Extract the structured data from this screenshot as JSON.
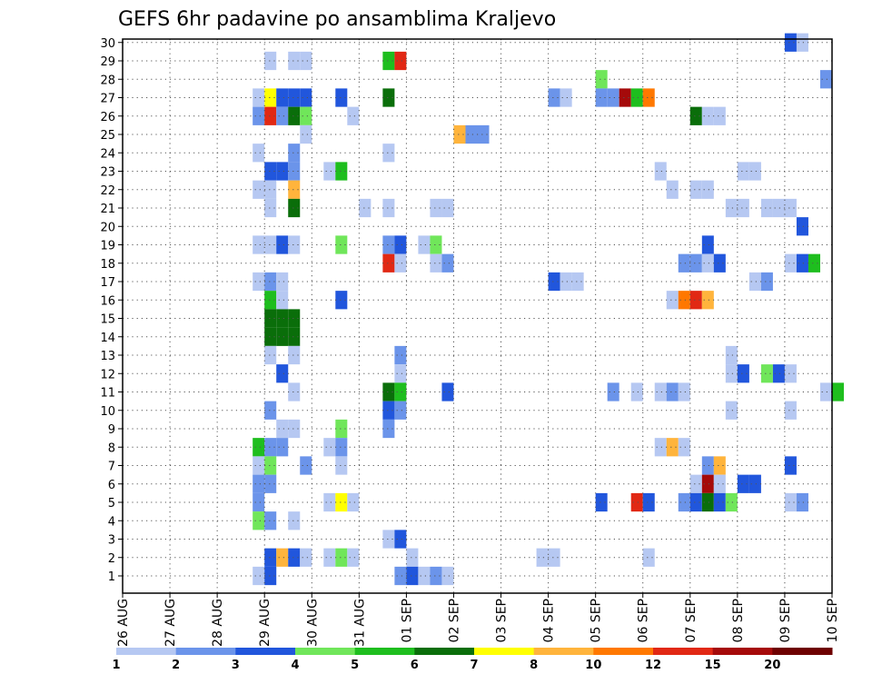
{
  "chart_data": {
    "type": "heatmap",
    "title": "GEFS 6hr padavine po ansamblima Kraljevo",
    "xlabel": "",
    "ylabel": "",
    "x_ticks": [
      "26 AUG",
      "27 AUG",
      "28 AUG",
      "29 AUG",
      "30 AUG",
      "31 AUG",
      "01 SEP",
      "02 SEP",
      "03 SEP",
      "04 SEP",
      "05 SEP",
      "06 SEP",
      "07 SEP",
      "08 SEP",
      "09 SEP",
      "10 SEP"
    ],
    "x_range": [
      "26 AUG 00Z",
      "10 SEP 00Z"
    ],
    "y_ticks": [
      1,
      2,
      3,
      4,
      5,
      6,
      7,
      8,
      9,
      10,
      11,
      12,
      13,
      14,
      15,
      16,
      17,
      18,
      19,
      20,
      21,
      22,
      23,
      24,
      25,
      26,
      27,
      28,
      29,
      30
    ],
    "grid": true,
    "legend": {
      "placement": "bottom",
      "labels": [
        "1",
        "2",
        "3",
        "4",
        "5",
        "6",
        "7",
        "8",
        "10",
        "12",
        "15",
        "20"
      ],
      "colors": [
        "#b6c8f2",
        "#6b94ea",
        "#2156dc",
        "#70e65a",
        "#1ebe1e",
        "#0a6e0a",
        "#ffff00",
        "#ffb43c",
        "#ff7800",
        "#e12814",
        "#a50a0a",
        "#6e0000"
      ]
    },
    "cells_note": "each cell = [step, member, level]; step = 6-hour interval index after 26 AUG 00Z; level 1..12 indexes the legend colors",
    "cells": [
      [
        56,
        30,
        3
      ],
      [
        57,
        30,
        1
      ],
      [
        12,
        29,
        1
      ],
      [
        14,
        29,
        1
      ],
      [
        15,
        29,
        1
      ],
      [
        22,
        29,
        5
      ],
      [
        23,
        29,
        10
      ],
      [
        40,
        28,
        4
      ],
      [
        59,
        28,
        2
      ],
      [
        11,
        27,
        1
      ],
      [
        12,
        27,
        7
      ],
      [
        13,
        27,
        3
      ],
      [
        14,
        27,
        3
      ],
      [
        15,
        27,
        3
      ],
      [
        18,
        27,
        3
      ],
      [
        22,
        27,
        6
      ],
      [
        36,
        27,
        2
      ],
      [
        37,
        27,
        1
      ],
      [
        40,
        27,
        2
      ],
      [
        41,
        27,
        2
      ],
      [
        42,
        27,
        11
      ],
      [
        43,
        27,
        5
      ],
      [
        44,
        27,
        9
      ],
      [
        11,
        26,
        2
      ],
      [
        12,
        26,
        10
      ],
      [
        13,
        26,
        2
      ],
      [
        14,
        26,
        6
      ],
      [
        15,
        26,
        4
      ],
      [
        19,
        26,
        1
      ],
      [
        48,
        26,
        6
      ],
      [
        49,
        26,
        1
      ],
      [
        50,
        26,
        1
      ],
      [
        15,
        25,
        1
      ],
      [
        28,
        25,
        8
      ],
      [
        29,
        25,
        2
      ],
      [
        30,
        25,
        2
      ],
      [
        11,
        24,
        1
      ],
      [
        14,
        24,
        2
      ],
      [
        22,
        24,
        1
      ],
      [
        12,
        23,
        3
      ],
      [
        13,
        23,
        3
      ],
      [
        14,
        23,
        2
      ],
      [
        17,
        23,
        1
      ],
      [
        18,
        23,
        5
      ],
      [
        45,
        23,
        1
      ],
      [
        52,
        23,
        1
      ],
      [
        53,
        23,
        1
      ],
      [
        11,
        22,
        1
      ],
      [
        12,
        22,
        1
      ],
      [
        14,
        22,
        8
      ],
      [
        46,
        22,
        1
      ],
      [
        48,
        22,
        1
      ],
      [
        49,
        22,
        1
      ],
      [
        12,
        21,
        1
      ],
      [
        14,
        21,
        6
      ],
      [
        20,
        21,
        1
      ],
      [
        22,
        21,
        1
      ],
      [
        26,
        21,
        1
      ],
      [
        27,
        21,
        1
      ],
      [
        51,
        21,
        1
      ],
      [
        52,
        21,
        1
      ],
      [
        54,
        21,
        1
      ],
      [
        55,
        21,
        1
      ],
      [
        56,
        21,
        1
      ],
      [
        57,
        20,
        3
      ],
      [
        11,
        19,
        1
      ],
      [
        12,
        19,
        1
      ],
      [
        13,
        19,
        3
      ],
      [
        14,
        19,
        1
      ],
      [
        18,
        19,
        4
      ],
      [
        22,
        19,
        2
      ],
      [
        23,
        19,
        3
      ],
      [
        25,
        19,
        1
      ],
      [
        26,
        19,
        4
      ],
      [
        49,
        19,
        3
      ],
      [
        22,
        18,
        10
      ],
      [
        23,
        18,
        1
      ],
      [
        26,
        18,
        1
      ],
      [
        27,
        18,
        2
      ],
      [
        47,
        18,
        2
      ],
      [
        48,
        18,
        2
      ],
      [
        49,
        18,
        1
      ],
      [
        50,
        18,
        3
      ],
      [
        56,
        18,
        1
      ],
      [
        57,
        18,
        3
      ],
      [
        58,
        18,
        5
      ],
      [
        11,
        17,
        1
      ],
      [
        12,
        17,
        2
      ],
      [
        13,
        17,
        1
      ],
      [
        36,
        17,
        3
      ],
      [
        37,
        17,
        1
      ],
      [
        38,
        17,
        1
      ],
      [
        53,
        17,
        1
      ],
      [
        54,
        17,
        2
      ],
      [
        12,
        16,
        5
      ],
      [
        13,
        16,
        1
      ],
      [
        18,
        16,
        3
      ],
      [
        46,
        16,
        1
      ],
      [
        47,
        16,
        9
      ],
      [
        48,
        16,
        10
      ],
      [
        49,
        16,
        8
      ],
      [
        12,
        15,
        6
      ],
      [
        13,
        15,
        6
      ],
      [
        14,
        15,
        6
      ],
      [
        12,
        14,
        6
      ],
      [
        13,
        14,
        6
      ],
      [
        14,
        14,
        6
      ],
      [
        12,
        13,
        1
      ],
      [
        14,
        13,
        1
      ],
      [
        23,
        13,
        2
      ],
      [
        51,
        13,
        1
      ],
      [
        13,
        12,
        3
      ],
      [
        23,
        12,
        1
      ],
      [
        51,
        12,
        1
      ],
      [
        52,
        12,
        3
      ],
      [
        54,
        12,
        4
      ],
      [
        55,
        12,
        3
      ],
      [
        56,
        12,
        1
      ],
      [
        14,
        11,
        1
      ],
      [
        22,
        11,
        6
      ],
      [
        23,
        11,
        5
      ],
      [
        27,
        11,
        3
      ],
      [
        41,
        11,
        2
      ],
      [
        43,
        11,
        1
      ],
      [
        45,
        11,
        1
      ],
      [
        46,
        11,
        2
      ],
      [
        47,
        11,
        1
      ],
      [
        59,
        11,
        1
      ],
      [
        60,
        11,
        5
      ],
      [
        12,
        10,
        2
      ],
      [
        22,
        10,
        3
      ],
      [
        23,
        10,
        2
      ],
      [
        51,
        10,
        1
      ],
      [
        56,
        10,
        1
      ],
      [
        13,
        9,
        1
      ],
      [
        14,
        9,
        1
      ],
      [
        18,
        9,
        4
      ],
      [
        22,
        9,
        2
      ],
      [
        11,
        8,
        5
      ],
      [
        12,
        8,
        2
      ],
      [
        13,
        8,
        2
      ],
      [
        17,
        8,
        1
      ],
      [
        18,
        8,
        2
      ],
      [
        45,
        8,
        1
      ],
      [
        46,
        8,
        8
      ],
      [
        47,
        8,
        1
      ],
      [
        11,
        7,
        1
      ],
      [
        12,
        7,
        4
      ],
      [
        15,
        7,
        2
      ],
      [
        18,
        7,
        1
      ],
      [
        49,
        7,
        2
      ],
      [
        50,
        7,
        8
      ],
      [
        56,
        7,
        3
      ],
      [
        11,
        6,
        2
      ],
      [
        12,
        6,
        2
      ],
      [
        48,
        6,
        1
      ],
      [
        49,
        6,
        11
      ],
      [
        50,
        6,
        1
      ],
      [
        52,
        6,
        3
      ],
      [
        53,
        6,
        3
      ],
      [
        11,
        5,
        2
      ],
      [
        17,
        5,
        1
      ],
      [
        18,
        5,
        7
      ],
      [
        19,
        5,
        1
      ],
      [
        40,
        5,
        3
      ],
      [
        43,
        5,
        10
      ],
      [
        44,
        5,
        3
      ],
      [
        47,
        5,
        2
      ],
      [
        48,
        5,
        3
      ],
      [
        49,
        5,
        6
      ],
      [
        50,
        5,
        3
      ],
      [
        51,
        5,
        4
      ],
      [
        56,
        5,
        1
      ],
      [
        57,
        5,
        2
      ],
      [
        11,
        4,
        4
      ],
      [
        12,
        4,
        2
      ],
      [
        14,
        4,
        1
      ],
      [
        22,
        3,
        1
      ],
      [
        23,
        3,
        3
      ],
      [
        12,
        2,
        3
      ],
      [
        13,
        2,
        8
      ],
      [
        14,
        2,
        3
      ],
      [
        15,
        2,
        1
      ],
      [
        17,
        2,
        1
      ],
      [
        18,
        2,
        4
      ],
      [
        19,
        2,
        1
      ],
      [
        24,
        2,
        1
      ],
      [
        35,
        2,
        1
      ],
      [
        36,
        2,
        1
      ],
      [
        44,
        2,
        1
      ],
      [
        11,
        1,
        1
      ],
      [
        12,
        1,
        3
      ],
      [
        23,
        1,
        2
      ],
      [
        24,
        1,
        3
      ],
      [
        25,
        1,
        1
      ],
      [
        26,
        1,
        2
      ],
      [
        27,
        1,
        1
      ]
    ]
  }
}
